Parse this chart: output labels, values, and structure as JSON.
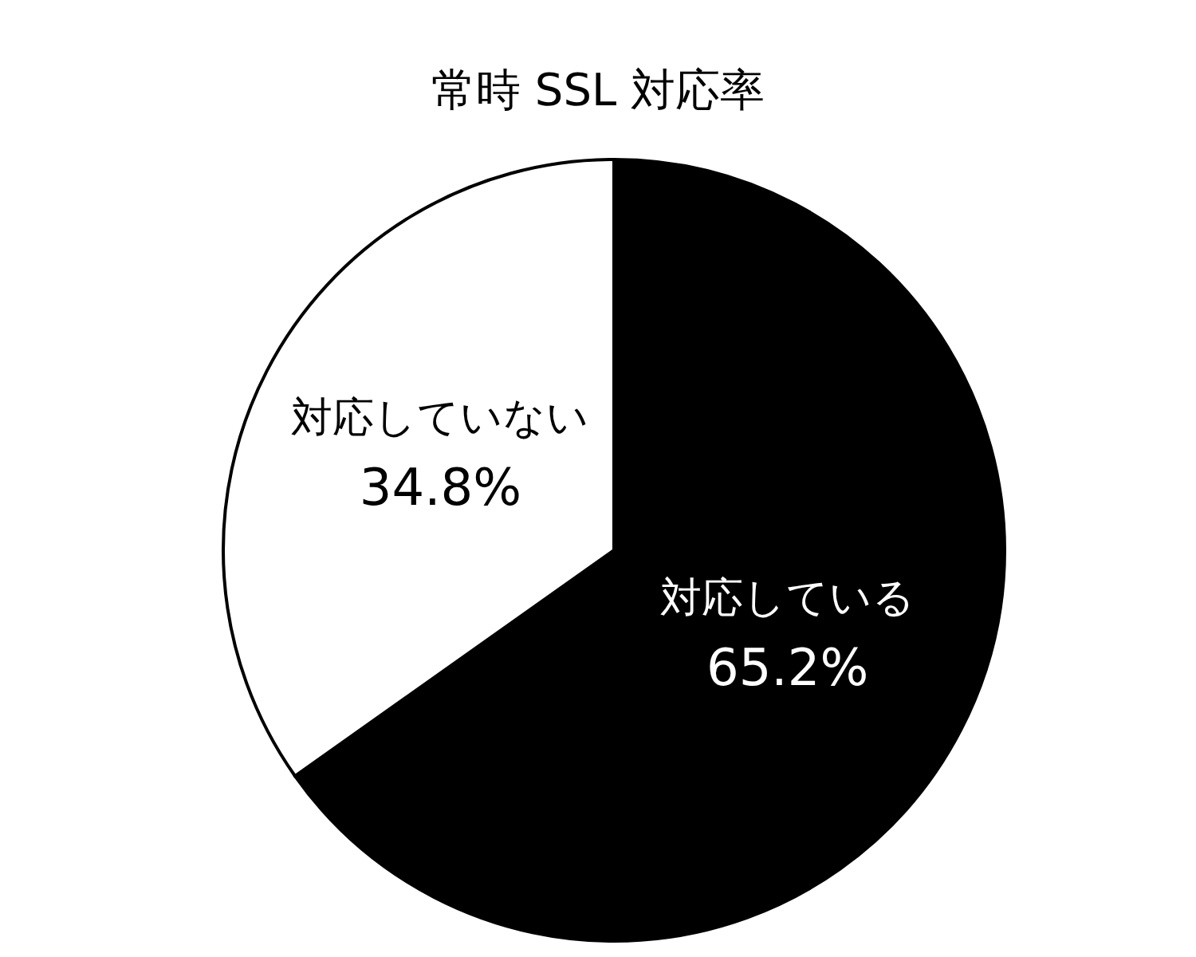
{
  "chart_data": {
    "type": "pie",
    "title": "常時 SSL 対応率",
    "categories": [
      "対応している",
      "対応していない"
    ],
    "values": [
      65.2,
      34.8
    ],
    "colors": [
      "#000000",
      "#ffffff"
    ],
    "value_labels": [
      "65.2%",
      "34.8%"
    ]
  }
}
